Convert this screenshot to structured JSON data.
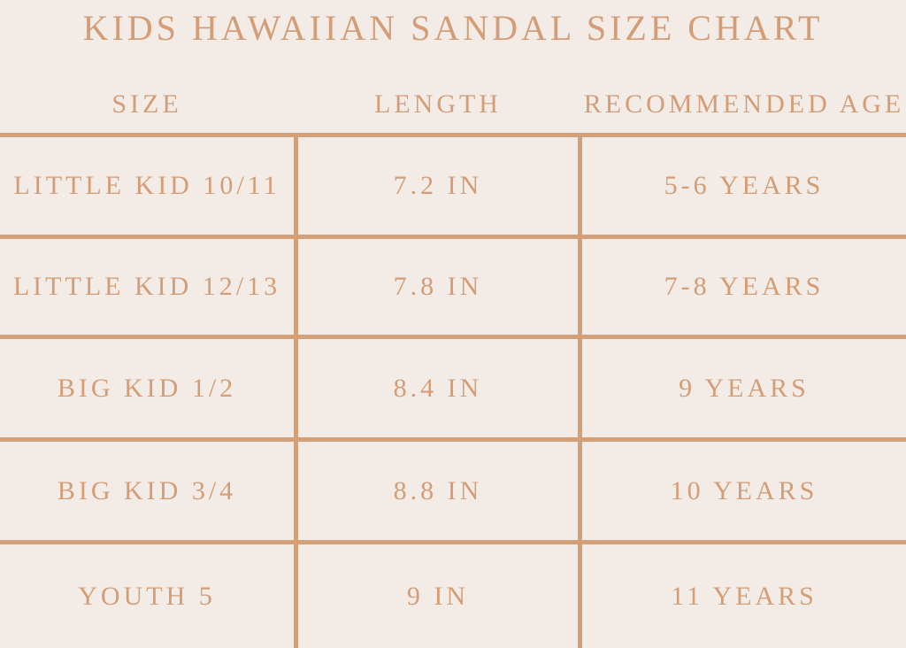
{
  "colors": {
    "background": "#f3ece6",
    "text": "#d49d76",
    "line": "#d3a078"
  },
  "chart_data": {
    "type": "table",
    "title": "KIDS HAWAIIAN SANDAL SIZE CHART",
    "columns": [
      "SIZE",
      "LENGTH",
      "RECOMMENDED AGE"
    ],
    "rows": [
      {
        "size": "LITTLE KID 10/11",
        "length": "7.2 IN",
        "age": "5-6 YEARS"
      },
      {
        "size": "LITTLE KID 12/13",
        "length": "7.8 IN",
        "age": "7-8 YEARS"
      },
      {
        "size": "BIG KID 1/2",
        "length": "8.4 IN",
        "age": "9 YEARS"
      },
      {
        "size": "BIG KID 3/4",
        "length": "8.8 IN",
        "age": "10 YEARS"
      },
      {
        "size": "YOUTH 5",
        "length": "9 IN",
        "age": "11 YEARS"
      }
    ]
  }
}
